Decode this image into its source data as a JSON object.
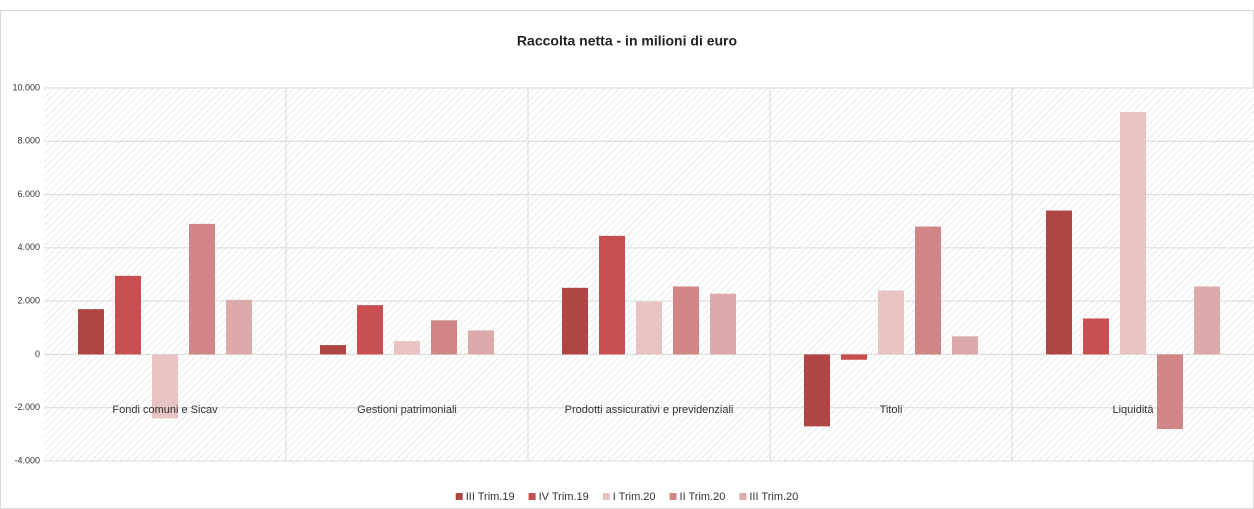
{
  "chart_data": {
    "type": "bar",
    "title": "Raccolta netta - in milioni di euro",
    "categories": [
      "Fondi comuni e Sicav",
      "Gestioni patrimoniali",
      "Prodotti assicurativi e previdenziali",
      "Titoli",
      "Liquidità"
    ],
    "series": [
      {
        "name": "III Trim.19",
        "color": "#b04545",
        "values": [
          1700,
          350,
          2500,
          -2700,
          5400
        ]
      },
      {
        "name": "IV Trim.19",
        "color": "#c84f4f",
        "values": [
          2950,
          1850,
          4450,
          -200,
          1350
        ]
      },
      {
        "name": "I Trim.20",
        "color": "#e8c3c3",
        "values": [
          -2400,
          500,
          1980,
          2400,
          9100
        ]
      },
      {
        "name": "II Trim.20",
        "color": "#d08686",
        "values": [
          4900,
          1280,
          2550,
          4800,
          -2800
        ]
      },
      {
        "name": "III Trim.20",
        "color": "#dcaaaa",
        "values": [
          2050,
          900,
          2280,
          680,
          2550
        ]
      }
    ],
    "ylim": [
      -4000,
      10000
    ],
    "yticks": [
      {
        "value": -4000,
        "label": "-4.000"
      },
      {
        "value": -2000,
        "label": "-2.000"
      },
      0,
      {
        "value": 2000,
        "label": "2.000"
      },
      {
        "value": 4000,
        "label": "4.000"
      },
      {
        "value": 6000,
        "label": "6.000"
      },
      {
        "value": 8000,
        "label": "8.000"
      },
      {
        "value": 10000,
        "label": "10.000"
      }
    ],
    "grid": true,
    "legend": "bottom"
  }
}
